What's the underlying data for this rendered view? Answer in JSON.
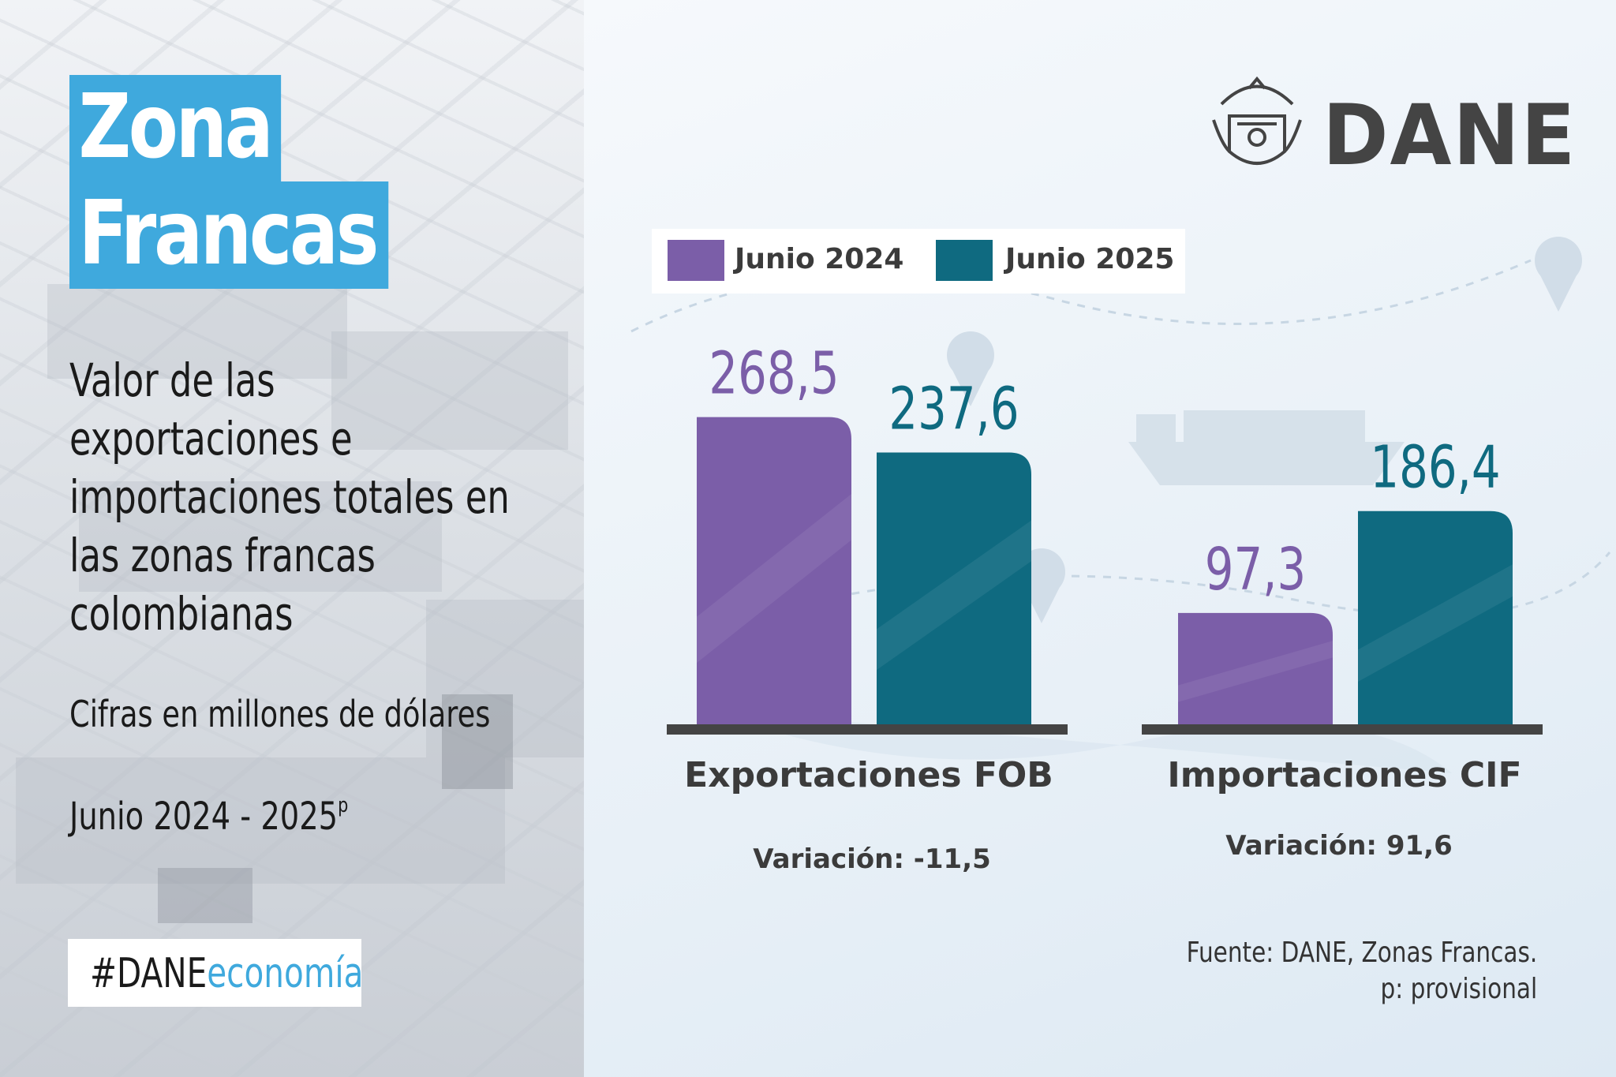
{
  "title": {
    "line1": "Zona",
    "line2": "Francas"
  },
  "subtitle": "Valor de las exportaciones e importaciones totales en las zonas francas colombianas",
  "units": "Cifras en millones de dólares",
  "period": {
    "text": "Junio 2024 - 2025",
    "sup": "p"
  },
  "hashtag": {
    "prefix": "#DANE",
    "suffix": "economía"
  },
  "logo": {
    "text": "DANE"
  },
  "source": {
    "line1": "Fuente: DANE, Zonas Francas.",
    "line2": "p: provisional"
  },
  "colors": {
    "series_2024": "#7b5ea8",
    "series_2025": "#0f6a80",
    "accent": "#3fa9dd"
  },
  "chart_data": {
    "type": "bar",
    "categories": [
      "Exportaciones FOB",
      "Importaciones CIF"
    ],
    "series": [
      {
        "name": "Junio 2024",
        "values": [
          268.5,
          97.3
        ],
        "labels": [
          "268,5",
          "97,3"
        ]
      },
      {
        "name": "Junio 2025",
        "values": [
          237.6,
          186.4
        ],
        "labels": [
          "237,6",
          "186,4"
        ]
      }
    ],
    "variations": [
      "Variación: -11,5",
      "Variación: 91,6"
    ],
    "legend_position": "top",
    "grid": false
  }
}
